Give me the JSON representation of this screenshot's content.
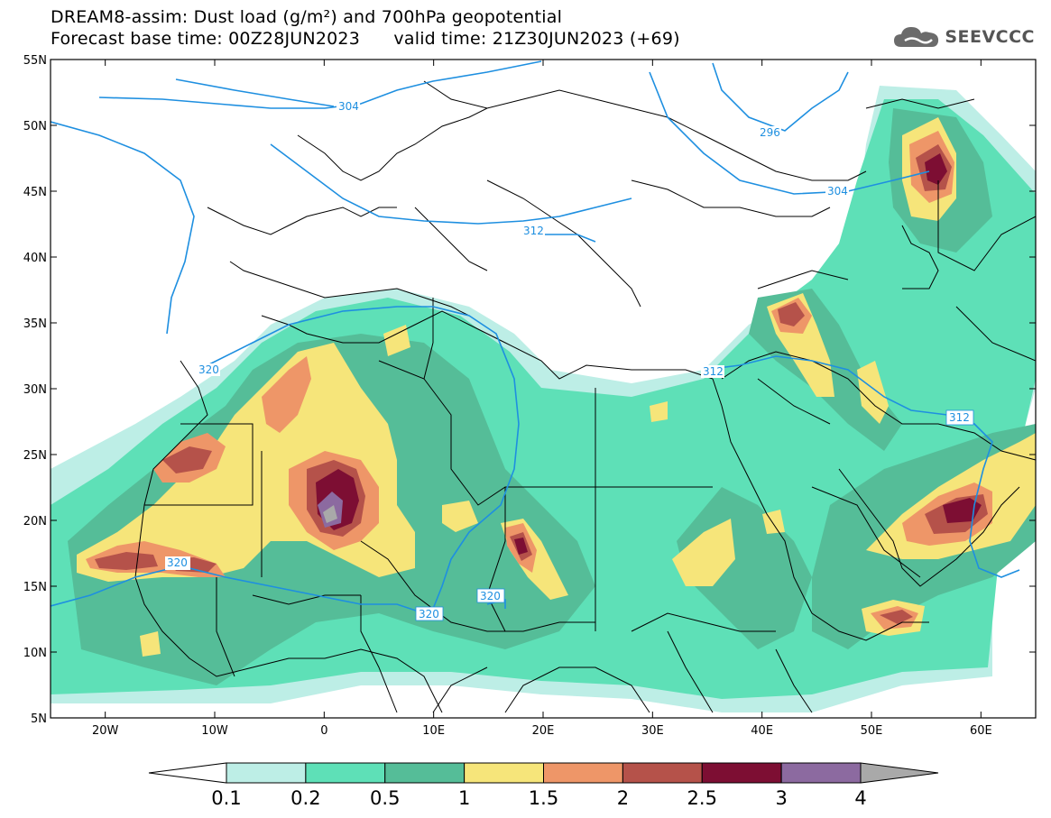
{
  "title": {
    "line1": "DREAM8-assim: Dust load (g/m²) and 700hPa geopotential",
    "line2_base": "Forecast base time: 00Z28JUN2023",
    "line2_valid": "valid time: 21Z30JUN2023 (+69)"
  },
  "logo": {
    "text": "SEEVCCC",
    "icon": "cloud-logo-icon"
  },
  "map": {
    "lon_range": [
      -25,
      65
    ],
    "lat_range": [
      5,
      55
    ],
    "lat_ticks": [
      "55N",
      "50N",
      "45N",
      "40N",
      "35N",
      "30N",
      "25N",
      "20N",
      "15N",
      "10N",
      "5N"
    ],
    "lon_ticks": [
      "20W",
      "10W",
      "0",
      "10E",
      "20E",
      "30E",
      "40E",
      "50E",
      "60E"
    ]
  },
  "contours": {
    "color": "#1e8fe0",
    "labels": [
      "304",
      "296",
      "304",
      "312",
      "312",
      "312",
      "320",
      "320",
      "320",
      "320"
    ]
  },
  "colorbar": {
    "levels": [
      "0.1",
      "0.2",
      "0.5",
      "1",
      "1.5",
      "2",
      "2.5",
      "3",
      "4"
    ],
    "colors": [
      "#ffffff",
      "#bdeee6",
      "#5ee0b7",
      "#55bd98",
      "#f6e57a",
      "#ee9668",
      "#b5524a",
      "#7d0e33",
      "#8c6aa0",
      "#a9a9a9"
    ]
  }
}
